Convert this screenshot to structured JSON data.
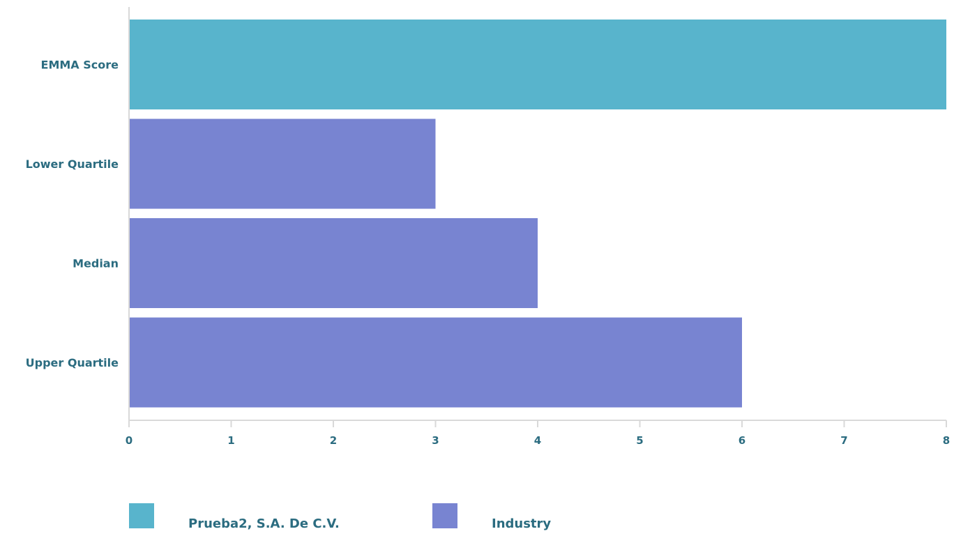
{
  "chart_data": {
    "type": "bar",
    "orientation": "horizontal",
    "categories": [
      "EMMA Score",
      "Lower Quartile",
      "Median",
      "Upper Quartile"
    ],
    "values": [
      8,
      3,
      4,
      6
    ],
    "bar_series": [
      "Prueba2, S.A. De C.V.",
      "Industry",
      "Industry",
      "Industry"
    ],
    "series": [
      {
        "name": "Prueba2, S.A. De C.V.",
        "color": "#58b4cc"
      },
      {
        "name": "Industry",
        "color": "#7884d1"
      }
    ],
    "xlim": [
      0,
      8
    ],
    "xticks": [
      "0",
      "1",
      "2",
      "3",
      "4",
      "5",
      "6",
      "7",
      "8"
    ],
    "grid": false,
    "legend_position": "bottom",
    "label_color": "#2b6c80",
    "axis_color": "#d9d9d9"
  }
}
